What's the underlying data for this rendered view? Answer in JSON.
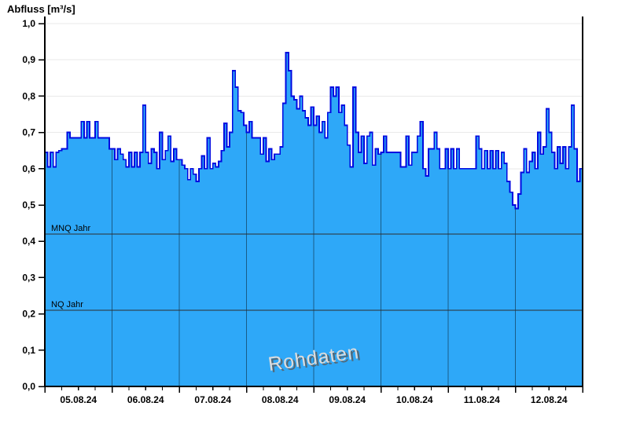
{
  "title": "Abfluss [m³/s]",
  "watermark": "Rohdaten",
  "chart_data": {
    "type": "area",
    "title": "Abfluss [m³/s]",
    "ylabel": "Abfluss [m³/s]",
    "ylim": [
      0.0,
      1.0
    ],
    "ytick_step": 0.1,
    "ytick_labels": [
      "0,0",
      "0,1",
      "0,2",
      "0,3",
      "0,4",
      "0,5",
      "0,6",
      "0,7",
      "0,8",
      "0,9",
      "1,0"
    ],
    "x_dates": [
      "05.08.24",
      "06.08.24",
      "07.08.24",
      "08.08.24",
      "09.08.24",
      "10.08.24",
      "11.08.24",
      "12.08.24"
    ],
    "hours_per_day": 24,
    "minor_tick_hours": 6,
    "grid": "horizontal-light, vertical-day-boundaries",
    "legend_position": "none",
    "series": [
      {
        "name": "Abfluss Rohdaten",
        "values": [
          0.645,
          0.605,
          0.645,
          0.605,
          0.645,
          0.65,
          0.655,
          0.655,
          0.7,
          0.685,
          0.685,
          0.685,
          0.685,
          0.73,
          0.685,
          0.73,
          0.685,
          0.685,
          0.73,
          0.685,
          0.685,
          0.685,
          0.685,
          0.655,
          0.655,
          0.625,
          0.655,
          0.64,
          0.625,
          0.605,
          0.645,
          0.605,
          0.645,
          0.605,
          0.645,
          0.775,
          0.645,
          0.615,
          0.655,
          0.645,
          0.6,
          0.7,
          0.625,
          0.65,
          0.69,
          0.62,
          0.655,
          0.625,
          0.625,
          0.61,
          0.6,
          0.57,
          0.6,
          0.585,
          0.565,
          0.6,
          0.635,
          0.6,
          0.685,
          0.6,
          0.615,
          0.605,
          0.62,
          0.65,
          0.725,
          0.66,
          0.7,
          0.87,
          0.825,
          0.76,
          0.755,
          0.72,
          0.7,
          0.73,
          0.685,
          0.685,
          0.685,
          0.64,
          0.685,
          0.62,
          0.655,
          0.625,
          0.64,
          0.64,
          0.66,
          0.78,
          0.92,
          0.87,
          0.8,
          0.79,
          0.765,
          0.8,
          0.76,
          0.74,
          0.72,
          0.77,
          0.72,
          0.745,
          0.7,
          0.73,
          0.685,
          0.755,
          0.825,
          0.8,
          0.825,
          0.755,
          0.775,
          0.72,
          0.665,
          0.605,
          0.825,
          0.7,
          0.645,
          0.69,
          0.615,
          0.69,
          0.7,
          0.61,
          0.655,
          0.64,
          0.645,
          0.69,
          0.645,
          0.645,
          0.645,
          0.645,
          0.645,
          0.605,
          0.605,
          0.69,
          0.61,
          0.645,
          0.645,
          0.69,
          0.73,
          0.6,
          0.58,
          0.655,
          0.655,
          0.7,
          0.655,
          0.6,
          0.6,
          0.655,
          0.6,
          0.655,
          0.6,
          0.655,
          0.6,
          0.6,
          0.6,
          0.6,
          0.6,
          0.6,
          0.69,
          0.655,
          0.6,
          0.65,
          0.6,
          0.65,
          0.6,
          0.65,
          0.6,
          0.645,
          0.615,
          0.565,
          0.535,
          0.5,
          0.49,
          0.53,
          0.59,
          0.655,
          0.59,
          0.62,
          0.645,
          0.6,
          0.7,
          0.64,
          0.66,
          0.765,
          0.7,
          0.645,
          0.6,
          0.66,
          0.615,
          0.66,
          0.6,
          0.66,
          0.775,
          0.655,
          0.565,
          0.6
        ]
      }
    ],
    "reference_lines": [
      {
        "label": "MNQ Jahr",
        "value": 0.42
      },
      {
        "label": "NQ Jahr",
        "value": 0.21
      }
    ],
    "annotations": [
      "Rohdaten"
    ],
    "colors": {
      "fill": "#2EA8F8",
      "line": "#0008E0",
      "grid": "#E9E9E9",
      "axis": "#000000",
      "day_grid": "rgba(0,0,0,0.45)",
      "reference": "#2E2E2E",
      "watermark": "#DCDCDC",
      "watermark_shadow": "#5A5A5A",
      "text": "#000000"
    }
  }
}
